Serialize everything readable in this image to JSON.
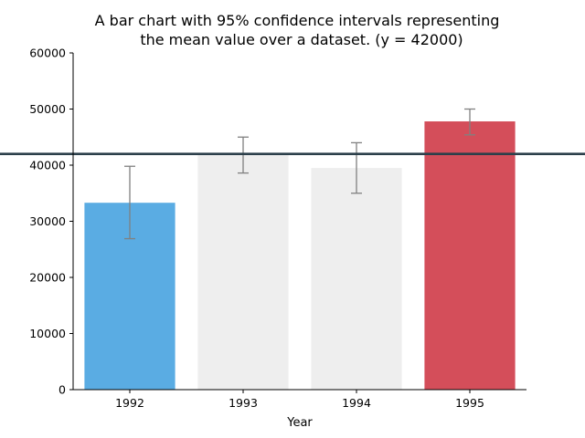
{
  "chart_data": {
    "type": "bar",
    "title_lines": [
      "A bar chart with 95% confidence intervals representing",
      "the mean value over a dataset. (y = 42000)"
    ],
    "xlabel": "Year",
    "ylabel": "",
    "categories": [
      "1992",
      "1993",
      "1994",
      "1995"
    ],
    "values": [
      33300,
      41800,
      39500,
      47800
    ],
    "ci_low": [
      26900,
      38600,
      35000,
      45400
    ],
    "ci_high": [
      39800,
      45000,
      44000,
      50000
    ],
    "reference_line": 42000,
    "ylim": [
      0,
      60000
    ],
    "yticks": [
      "0",
      "10000",
      "20000",
      "30000",
      "40000",
      "50000",
      "60000"
    ],
    "grid": false,
    "legend": "none",
    "bar_colors": [
      "#5aace3",
      "#eeeeee",
      "#eeeeee",
      "#d44e5a"
    ],
    "errorbar_color": "#808080",
    "reference_line_color": "#2b3f4a"
  }
}
